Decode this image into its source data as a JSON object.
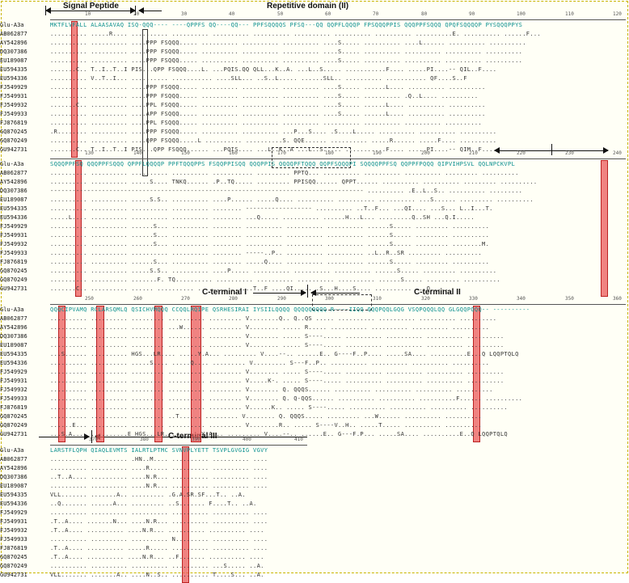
{
  "regions": {
    "signal_peptide": "Signal Peptide",
    "repetitive_domain": "Repetitive domain (II)",
    "c_terminal_1": "C-terminal I",
    "c_terminal_2": "C-terminal II",
    "c_terminal_3": "C-terminal III"
  },
  "colors": {
    "highlight": "#eb5a5a",
    "reference_text": "#0a8f8f",
    "frame": "#c8b400"
  },
  "sequence_names": [
    "Glu-A3a",
    "AB062877",
    "AY542896",
    "DQ307386",
    "EU189087",
    "EU594335",
    "EU594336",
    "FJ549929",
    "FJ549931",
    "FJ549932",
    "FJ549933",
    "FJ876819",
    "GQ870245",
    "GQ870249",
    "GU942731"
  ],
  "blocks": [
    {
      "ticks": [
        "10",
        "20",
        "30",
        "40",
        "50",
        "60",
        "70",
        "80",
        "90",
        "100",
        "110",
        "120"
      ],
      "rows": [
        "MKTFLVFALL ALAASAVAQ ISQ-QQQ---- ----QPPFS QQ----QQ--- PPFSQQQQS PFSQ---QQ QQPFLQQQP FPSQQQPPIS QQQPPFSQQQ QPQFSQQQQP PYSQQQPPYS",
        ".......... .....R.... .......... .......... .......... .......... .......... .......... .......... ..........E. .......... ......F...",
        ".......... .......... ....PPP FSQQQ..... .......... .......... .......... ....S..... .......... ....L...... .......... ..........",
        ".......... .......... ....PPP FSQQQ..... .......... .......... .......... ....S..... .......... .......... .......... ..........",
        ".......... .......... ....PPP FSQQQ..... .......... .......... .......... ....S..... .......... .......... .......... ..........",
        ".......C.. T..I..T..I PIS...QPP FSQQQ....L. ...PQIS.QQ QLL...K..A. ...L..S..... ...........F.... .....PI....-- QIL..F....",
        ".......... V..T..I... .......... ........... ....SLL... ..S..L..... ......SLL.. .......... ........... QF....S..F",
        ".......... .......... ....PPP FSQQQ..... .......... .......... .......... ....S..... ......L.... .......... ..........",
        ".......... .......... ....PPP FSQQQ..... .......... .......... .......... ....S..... .......... .Q..L.... ..........",
        ".......C.. .......... ....PPL FSQQQ..... .......... .......... .......... ....S..... ......L.... .......... ..........",
        ".......... .......... ....APP FSQQQ..... .......... .......... .......... ....S..... ......L.... .......... ..........",
        ".......... .......... ....PPL FSQQQ..... .......... .......... .......... .......... .......... .......... ..........",
        ".R........ .......... ....PPP FSQQQ..... .......... .......... ...P...S.... .S....L..... .......... .......... ..........",
        ".......... .......... ....QPP FSQQQ.....L .......... ..........S. QQE...... .......... .....R...... .....F.... ..........",
        ".......C.. T..I..T..I PIS...QPP FSQQQ...... ...PQIS.... ...L..K..A ...L..S..... ...........F.... .....PI....-- QIM..F...."
      ]
    },
    {
      "ticks": [
        "130",
        "140",
        "150",
        "160",
        "170",
        "180",
        "190",
        "200",
        "210",
        "220",
        "230",
        "240"
      ],
      "rows": [
        "SQQQPPFSQ QQQPPFSQQQ QPPFLQQQQP PPFTQQQPPS FSQQPPISQQ QQQPPIS QQQQPFTQQQ QQPFSQQQPI SQQQQPPFSQ QQPPFPQQQ QIPVIHPSVL QQLNPCKVPL",
        ".......... .......... .......... .......... ........... ......... PPTQ... .......... .......... .......... ......... ..........",
        ".......... .......... .....S.... TNKQ...... .P..TQ..... ......... PPISQQ...... QPPT...... .......... .......... ......... ..........",
        "------------------------------------------------------------------------------------- .......... .E..L..S.. .......... .........",
        ".......... .......... .....S.S.. .......... ....P...... .....Q.... .......... .......... .......... ...S...... ......... ..........",
        ".......... .......... .......... .......... ........ ------------------ .......... ..T..F... ...QI.... ...S... L..I...T.",
        ".....L.... .......... .......... .......... ........ ...Q..... .......... ......H...L... .........Q..SH ...Q.I.....",
        ".......... .......... ......S... .......... ........ .......... .......... .......... ......S..... ......... ..........",
        ".......... .......... ......S... .......... ........ .......... .......... .......... ......S..... ......... ..........",
        ".......... .......... ......S... .......... ........ .......... .......... .......... ......S..... ......... ........M.",
        ".......... .......... .......... .......... ........ -----..P.. .......... .......... ..L..R..SR ......... ..........",
        ".......... .......... ......S... .......... ........ .....Q.... .......... .......... ......S..... ......... ..........",
        ".......... .......... .....S.S.. .......... ....P..... .......... .......... .......... ......S..... ......... ..........",
        ".......... .......... .......F. TQ.......... .......... .......... .......... .......... ......S..... ......... ..........",
        ".......C.. .......... ...... .......... ........ ......T..F ....QI..... .S...H....S.... .......... ...Q....."
      ]
    },
    {
      "ticks": [
        "250",
        "260",
        "270",
        "280",
        "290",
        "300",
        "310",
        "320",
        "330",
        "340",
        "350",
        "360"
      ],
      "rows": [
        "QQQCIPVAMQ RCLARSQMLQ QSICHVMQQQ CCQQLRQIPE QSRHESIRAI IYSIILQQQQ QQQQQQQQQ R----IIQQ QQQPQQLGQG VSQPQQQLQQ GLGQQPQQQ-- ----------",
        ".......... .......... ......... .......... ......... V........Q.. Q..QS ..... .......... .......... .......... ..........",
        ".......... .......... ......... ...W...... ......... V........ ..... R..... .......... .......... .......... ..........",
        ".......... .......... ......... .......... ......... V........ ..... S----..... .......... .......... .......... ..........",
        ".......... .......... ......... .......... ......... V........ ..... S----..... .......... .......... .......... ..........",
        "...S...... .......... HGS...LR.... .....Y.A... ......... V....--.. ......E.. G----F..P.... .....SA.... ..........E...Q LQQPTQLQ",
        ".......... .......... .....S.... .....Q.... ......... V......... S---F..P.. .......... .......... .......... ..........",
        ".......... .......... ......... .......... ......... V........ ..... S----..... .......... .......... .......... ..........",
        ".......... .......... ......... .......... ......... V.....K-. ..... S----..... .......... .......... .......... ..........",
        ".......... .......... ......... .......... ......... V........ Q. QQQS...... .......... .......... .......... ..........",
        ".......... .......... ......... .......... ......... V........ Q. Q-QQS...... .......... .......... ..........F...... ..........",
        ".......... .......... ......... .......... ......... V......K.. ..... S----..... .......... .......... .......... ..........",
        ".......... .......... ......... ..T...... ......... V........ Q. QQQS..... ......... ...W...... .......... ..........",
        "......E... .......... ......... .......... ......... V........R.. ..... S----V..H.. .....T..... .......... ..........",
        "...S.A.... ..........E HGS...LR.... .....Y.A... ......... V....--.. ......E.. G---F.P... .....SA.... ..........E..Q LQQPTQLQ"
      ]
    },
    {
      "ticks": [
        "370",
        "380",
        "390",
        "400",
        "410"
      ],
      "rows": [
        "LARSTFLQPH QIAQLEVMTS IALRTLPTMC SVNVPLYETT TSVPLGVGIG VGVY",
        ".......... .......... .HN..M.... .......... .......... ....",
        ".......... .......... ....R..... .......... .......... ....",
        "..T..A.... .......... ....N.R... .......... .......... ....",
        ".......... .......... ....N.R... .......... .......... ....",
        "VLL....... .......A.. ......... .G.A.SR.SF...T.. ..A.",
        "..Q....... ......A... ......... ..S....... F....T.. ..A.",
        ".......... .......... .......... .......... .......... ....",
        ".T..A.... .......N... ....N.R... .......... .......... ....",
        ".T..A.... .......... ....N.R... .......... .......... ....",
        ".......... .......... .......... N......... .......... ....",
        ".T..A.... .......... .....R..... .......... .......... ....",
        ".T..A.... .......... ....N.R... ..F....... .......... ....",
        ".......... .......... .......... .......... ...S..... ..A.",
        "VLL....... .......A.. ....N..S.. .......... T....S... ..A."
      ]
    }
  ]
}
